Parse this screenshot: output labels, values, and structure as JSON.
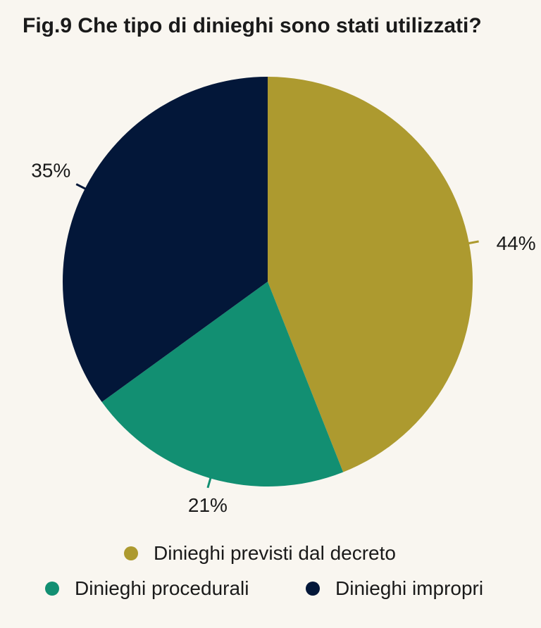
{
  "chart_data": {
    "type": "pie",
    "title": "Fig.9 Che tipo di dinieghi sono stati utilizzati?",
    "slices": [
      {
        "name": "Dinieghi previsti dal decreto",
        "value": 44,
        "label": "44%",
        "color": "#ad9a2f"
      },
      {
        "name": "Dinieghi procedurali",
        "value": 21,
        "label": "21%",
        "color": "#128f72"
      },
      {
        "name": "Dinieghi impropri",
        "value": 35,
        "label": "35%",
        "color": "#031739"
      }
    ],
    "legend_placement": "bottom"
  }
}
